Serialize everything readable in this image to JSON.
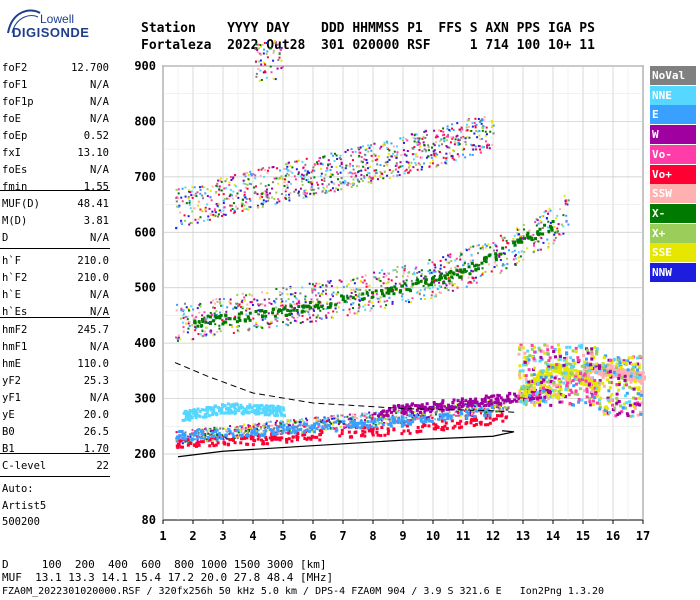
{
  "logo": {
    "top": "Lowell",
    "main": "DIGISONDE"
  },
  "header": {
    "line1": "Station    YYYY DAY    DDD HHMMSS P1  FFS S AXN PPS IGA PS",
    "line2": "Fortaleza  2022 Out28  301 020000 RSF     1 714 100 10+ 11"
  },
  "params_group1": [
    {
      "name": "foF2",
      "value": "12.700"
    },
    {
      "name": "foF1",
      "value": "N/A"
    },
    {
      "name": "foF1p",
      "value": "N/A"
    },
    {
      "name": "foE",
      "value": "N/A"
    },
    {
      "name": "foEp",
      "value": "0.52"
    },
    {
      "name": "fxI",
      "value": "13.10"
    },
    {
      "name": "foEs",
      "value": "N/A"
    },
    {
      "name": "fmin",
      "value": "1.55"
    }
  ],
  "params_group2": [
    {
      "name": "MUF(D)",
      "value": "48.41"
    },
    {
      "name": "M(D)",
      "value": "3.81"
    },
    {
      "name": "D",
      "value": "N/A"
    }
  ],
  "params_group3": [
    {
      "name": "h`F",
      "value": "210.0"
    },
    {
      "name": "h`F2",
      "value": "210.0"
    },
    {
      "name": "h`E",
      "value": "N/A"
    },
    {
      "name": "h`Es",
      "value": "N/A"
    }
  ],
  "params_group4": [
    {
      "name": "hmF2",
      "value": "245.7"
    },
    {
      "name": "hmF1",
      "value": "N/A"
    },
    {
      "name": "hmE",
      "value": "110.0"
    },
    {
      "name": "yF2",
      "value": "25.3"
    },
    {
      "name": "yF1",
      "value": "N/A"
    },
    {
      "name": "yE",
      "value": "20.0"
    },
    {
      "name": "B0",
      "value": "26.5"
    },
    {
      "name": "B1",
      "value": "1.70"
    }
  ],
  "params_group5": [
    {
      "name": "C-level",
      "value": "22"
    }
  ],
  "auto": {
    "line1": "Auto:",
    "line2": "Artist5",
    "line3": "500200"
  },
  "legend": [
    {
      "label": "NoVal",
      "bg": "#808080",
      "fg": "#ffffff"
    },
    {
      "label": "NNE",
      "bg": "#55d7ff",
      "fg": "#ffffff"
    },
    {
      "label": "E",
      "bg": "#3aa0ff",
      "fg": "#ffffff"
    },
    {
      "label": "W",
      "bg": "#a000a0",
      "fg": "#ffffff"
    },
    {
      "label": "Vo-",
      "bg": "#ff3ca8",
      "fg": "#ffffff"
    },
    {
      "label": "Vo+",
      "bg": "#ff0033",
      "fg": "#ffffff"
    },
    {
      "label": "SSW",
      "bg": "#ffb0b0",
      "fg": "#ffffff"
    },
    {
      "label": "X-",
      "bg": "#007a00",
      "fg": "#ffffff"
    },
    {
      "label": "X+",
      "bg": "#9acd59",
      "fg": "#ffffff"
    },
    {
      "label": "SSE",
      "bg": "#e6e600",
      "fg": "#ffffff"
    },
    {
      "label": "NNW",
      "bg": "#1d1de0",
      "fg": "#ffffff"
    }
  ],
  "bottom": {
    "line1": "D     100  200  400  600  800 1000 1500 3000 [km]",
    "line2": "MUF  13.1 13.3 14.1 15.4 17.2 20.0 27.8 48.4 [MHz]",
    "line3": "FZA0M_2022301020000.RSF / 320fx256h 50 kHz 5.0 km / DPS-4 FZA0M 904 / 3.9 S 321.6 E   Ion2Png 1.3.20"
  },
  "chart_data": {
    "type": "scatter",
    "x_ticks": [
      "1",
      "2",
      "3",
      "4",
      "5",
      "6",
      "7",
      "8",
      "9",
      "10",
      "11",
      "12",
      "13",
      "14",
      "15",
      "16",
      "17"
    ],
    "y_ticks": [
      "80",
      "200",
      "300",
      "400",
      "500",
      "600",
      "700",
      "800",
      "900"
    ],
    "xlim": [
      1,
      17
    ],
    "y_axis_note": "virtual height scale, 80 at base then 200-900",
    "grid": true,
    "series": [
      {
        "name": "Vo+",
        "color": "#ff0033",
        "trace": [
          [
            1.4,
            220
          ],
          [
            3,
            225
          ],
          [
            5,
            232
          ],
          [
            7,
            240
          ],
          [
            9,
            248
          ],
          [
            11,
            258
          ],
          [
            12.5,
            270
          ]
        ]
      },
      {
        "name": "E",
        "color": "#3aa0ff",
        "trace": [
          [
            1.4,
            235
          ],
          [
            3,
            240
          ],
          [
            6,
            250
          ],
          [
            9,
            262
          ],
          [
            12,
            280
          ]
        ]
      },
      {
        "name": "NNE",
        "color": "#55d7ff",
        "trace": [
          [
            1.6,
            270
          ],
          [
            3,
            285
          ],
          [
            5,
            280
          ]
        ]
      },
      {
        "name": "W",
        "color": "#a000a0",
        "trace": [
          [
            8,
            278
          ],
          [
            10,
            288
          ],
          [
            11,
            295
          ],
          [
            12,
            300
          ],
          [
            14,
            315
          ]
        ]
      },
      {
        "name": "X-",
        "color": "#007a00",
        "trace": [
          [
            2,
            440
          ],
          [
            5,
            460
          ],
          [
            8,
            490
          ],
          [
            11,
            530
          ],
          [
            13,
            590
          ],
          [
            14,
            615
          ]
        ]
      },
      {
        "name": "SSE",
        "color": "#e6e600",
        "trace": [
          [
            12.8,
            300
          ],
          [
            13.5,
            340
          ],
          [
            14,
            360
          ],
          [
            15,
            340
          ],
          [
            15.5,
            320
          ]
        ]
      },
      {
        "name": "SSW",
        "color": "#ffb0b0",
        "trace": [
          [
            15,
            360
          ],
          [
            16,
            350
          ],
          [
            17,
            340
          ]
        ]
      }
    ],
    "trace_bands": [
      {
        "name": "first echo",
        "points": [
          [
            1.4,
            225
          ],
          [
            4,
            240
          ],
          [
            7,
            255
          ],
          [
            10,
            270
          ],
          [
            12.5,
            285
          ]
        ]
      },
      {
        "name": "second echo",
        "points": [
          [
            1.4,
            425
          ],
          [
            4,
            445
          ],
          [
            7,
            470
          ],
          [
            10,
            505
          ],
          [
            12,
            540
          ],
          [
            14,
            600
          ],
          [
            14.5,
            630
          ]
        ]
      },
      {
        "name": "third echo",
        "points": [
          [
            1.4,
            630
          ],
          [
            4,
            665
          ],
          [
            7,
            700
          ],
          [
            10,
            740
          ],
          [
            12,
            770
          ]
        ]
      },
      {
        "name": "fourth echo",
        "points": [
          [
            4,
            895
          ],
          [
            5,
            900
          ]
        ]
      }
    ],
    "profile_line": [
      [
        1.5,
        195
      ],
      [
        3,
        205
      ],
      [
        6,
        215
      ],
      [
        9,
        225
      ],
      [
        12,
        232
      ],
      [
        12.7,
        240
      ],
      [
        12.3,
        242
      ]
    ],
    "dashed_line": [
      [
        1.4,
        365
      ],
      [
        2.5,
        340
      ],
      [
        4,
        310
      ],
      [
        6,
        292
      ],
      [
        9,
        282
      ],
      [
        12,
        278
      ],
      [
        12.8,
        275
      ]
    ]
  }
}
